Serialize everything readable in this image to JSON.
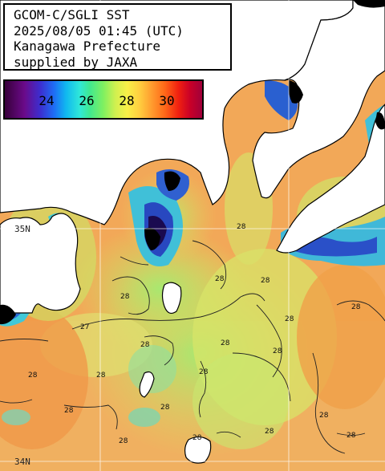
{
  "title": {
    "line1": "GCOM-C/SGLI SST",
    "line2": "2025/08/05 01:45 (UTC)",
    "line3": "Kanagawa Prefecture",
    "line4": "supplied by JAXA"
  },
  "legend": {
    "labels": [
      "24",
      "26",
      "28",
      "30"
    ],
    "min": 22,
    "max": 32
  },
  "grid": {
    "lat_labels": [
      "35N",
      "34N"
    ]
  },
  "contours": [
    "28",
    "28",
    "28",
    "28",
    "28",
    "28",
    "28",
    "28",
    "28",
    "27",
    "28",
    "28",
    "28",
    "28",
    "28",
    "28",
    "28",
    "28",
    "28",
    "28"
  ],
  "colors": {
    "land": "#ffffff",
    "coast": "#000000",
    "contour": "#222222",
    "grid": "#ffffff",
    "sst_warm": "#f6a050",
    "sst_mid": "#c8e868",
    "sst_cool": "#60d8c0"
  }
}
